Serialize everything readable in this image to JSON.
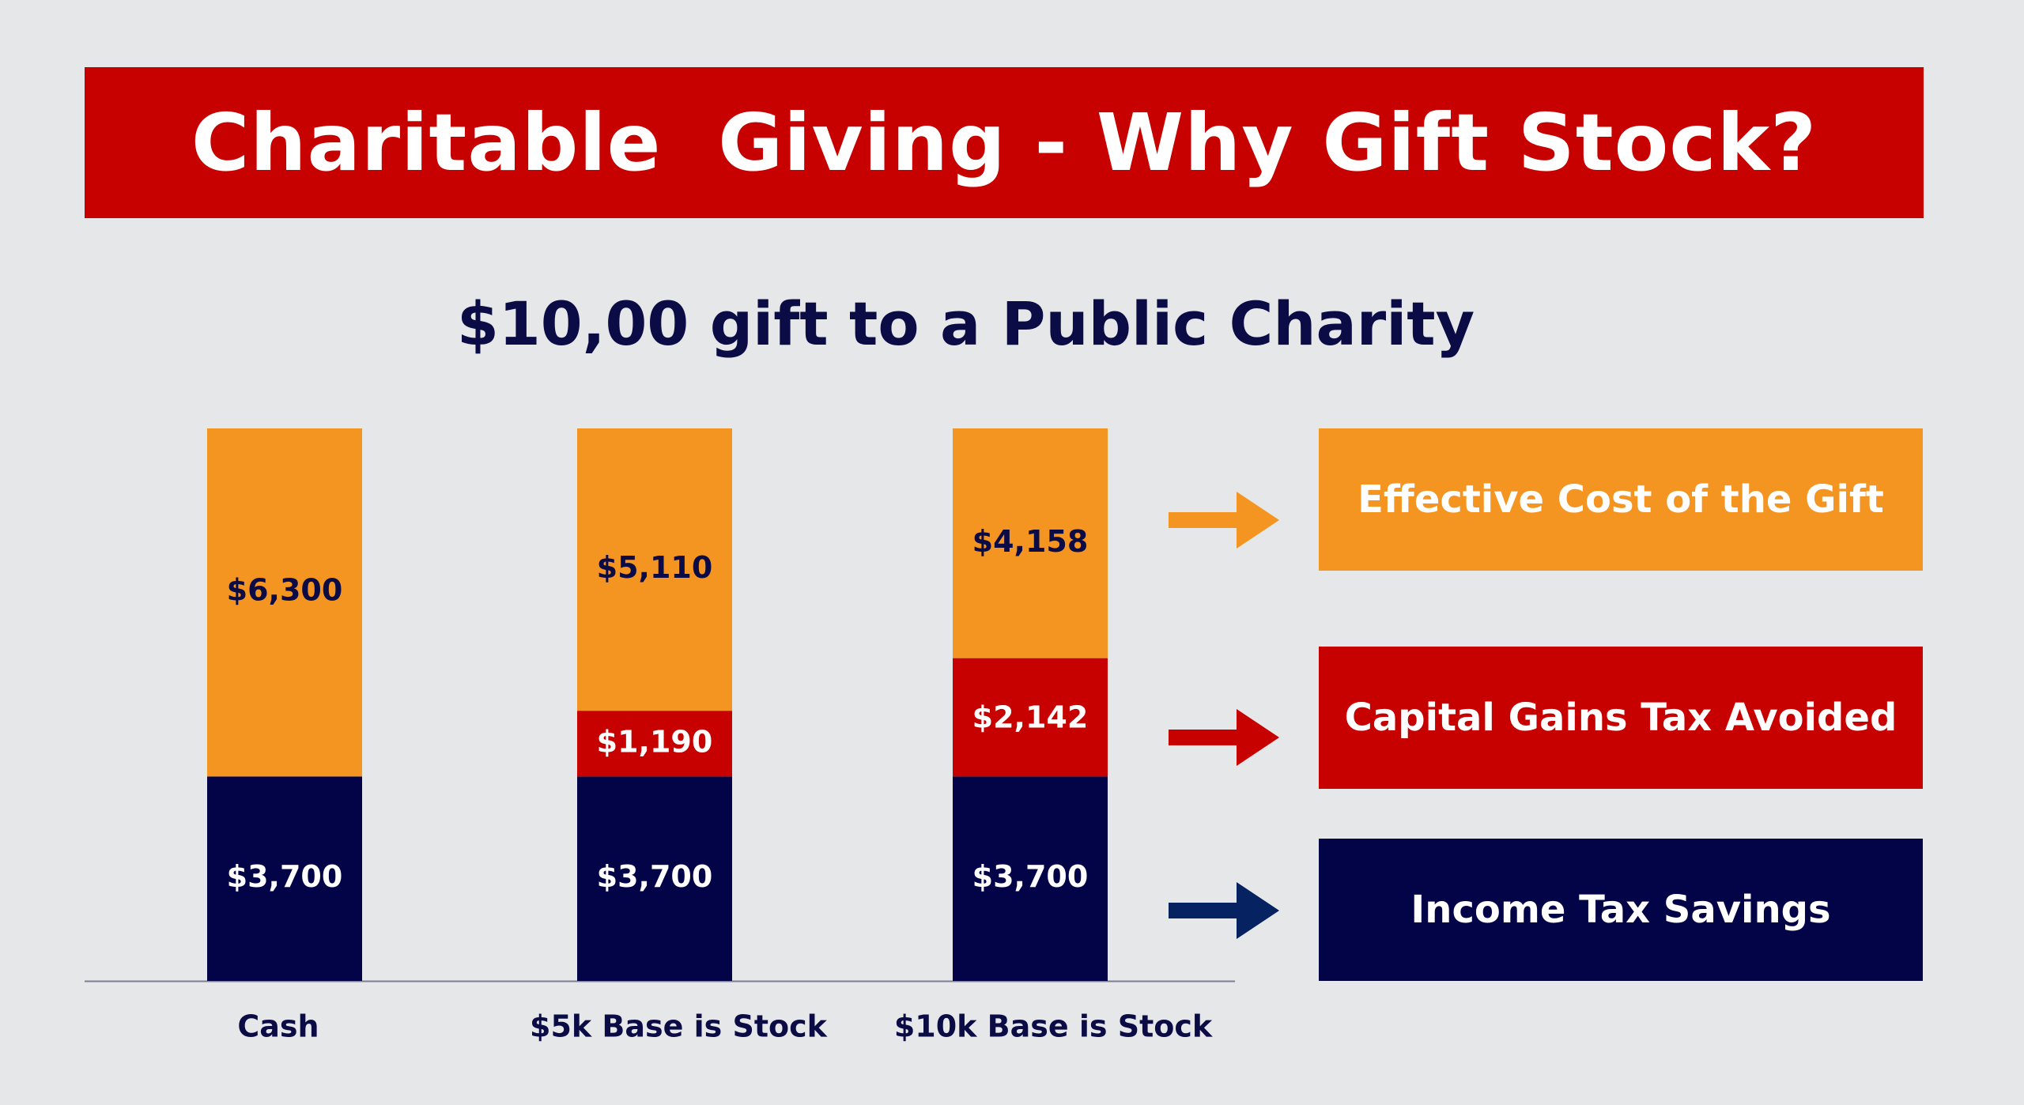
{
  "header": {
    "title": "Charitable  Giving - Why Gift Stock?"
  },
  "chart_data": {
    "type": "bar",
    "stacked": true,
    "title": "$10,00 gift to a Public Charity",
    "categories": [
      "Cash",
      "$5k Base is Stock",
      "$10k Base is Stock"
    ],
    "series": [
      {
        "name": "Income Tax Savings",
        "color": "#030447",
        "values": [
          3700,
          3700,
          3700
        ],
        "labels": [
          "$3,700",
          "$3,700",
          "$3,700"
        ]
      },
      {
        "name": "Capital Gains Tax Avoided",
        "color": "#c70000",
        "values": [
          0,
          1190,
          2142
        ],
        "labels": [
          "",
          "$1,190",
          "$2,142"
        ]
      },
      {
        "name": "Effective Cost of the Gift",
        "color": "#f59521",
        "values": [
          6300,
          5110,
          4158
        ],
        "labels": [
          "$6,300",
          "$5,110",
          "$4,158"
        ]
      }
    ],
    "ylim": [
      0,
      10000
    ],
    "grid": false,
    "legend": "right"
  },
  "legend": {
    "items": [
      {
        "label": "Effective Cost of the Gift",
        "color": "#f59521",
        "arrow_color": "#f59521"
      },
      {
        "label": "Capital Gains Tax Avoided",
        "color": "#c70000",
        "arrow_color": "#c70000"
      },
      {
        "label": "Income Tax Savings",
        "color": "#030447",
        "arrow_color": "#062260"
      }
    ]
  }
}
